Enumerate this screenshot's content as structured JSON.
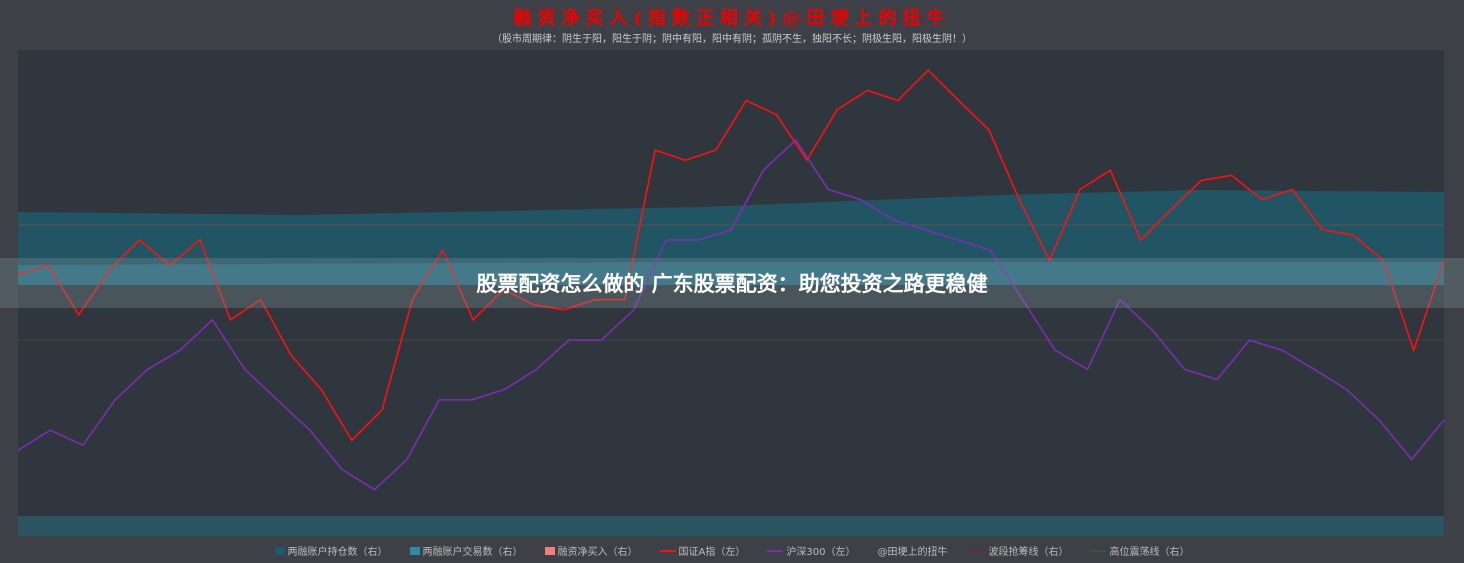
{
  "chart_data": {
    "type": "line",
    "title": "融资净买入(指数正相关)@田埂上的扭牛",
    "subtitle": "（股市周期律：阴生于阳，阳生于阴；阴中有阳，阳中有阴；孤阴不生，独阳不长；阴极生阳，阳极生阴！）",
    "ylim": [
      2000,
      6600
    ],
    "grid": true,
    "legend_position": "bottom",
    "colors": {
      "red": "#ff1010",
      "purple": "#7a2fb0",
      "teal_dark": "#1f5a6a",
      "teal": "#2d8aa0",
      "pink": "#f08080"
    },
    "series": [
      {
        "name": "国证A指（左）",
        "color": "#ff1010",
        "values": [
          4380,
          4470,
          3980,
          4420,
          4720,
          4470,
          4720,
          3930,
          4130,
          3580,
          3240,
          2740,
          3040,
          4130,
          4620,
          3930,
          4230,
          4080,
          4030,
          4130,
          4130,
          5610,
          5510,
          5610,
          6100,
          5960,
          5510,
          6010,
          6200,
          6100,
          6400,
          6100,
          5810,
          5120,
          4520,
          5220,
          5410,
          4720,
          5020,
          5310,
          5360,
          5120,
          5220,
          4820,
          4770,
          4520,
          3630,
          4520
        ]
      },
      {
        "name": "沪深300（左）",
        "color": "#7a2fb0",
        "values": [
          2640,
          2840,
          2690,
          3140,
          3440,
          3630,
          3930,
          3440,
          3140,
          2840,
          2450,
          2250,
          2550,
          3140,
          3140,
          3240,
          3440,
          3730,
          3730,
          4030,
          4720,
          4720,
          4820,
          5410,
          5710,
          5220,
          5120,
          4920,
          4820,
          4720,
          4620,
          4130,
          3630,
          3440,
          4130,
          3830,
          3440,
          3340,
          3730,
          3630,
          3440,
          3240,
          2940,
          2550,
          2940
        ]
      }
    ],
    "legend": [
      "两融账户持仓数（右）",
      "两融账户交易数（右）",
      "融资净买入（右）",
      "国证A指（左）",
      "沪深300（左）",
      "@田埂上的扭牛",
      "波段抢筹线（右）",
      "高位震荡线（右）"
    ]
  },
  "overlay": "股票配资怎么做的 广东股票配资：助您投资之路更稳健"
}
